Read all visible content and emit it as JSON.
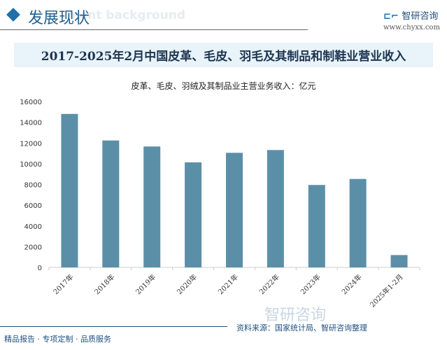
{
  "header": {
    "section_title": "发展现状",
    "ghost_text": "ment background",
    "brand": "智研咨询",
    "url": "www.chyxx.com"
  },
  "main_title": "2017-2025年2月中国皮革、毛皮、羽毛及其制品和制鞋业营业收入",
  "footer": {
    "slogan": "精品报告 · 专项定制 · 品质服务",
    "source": "资料来源：国家统计局、智研咨询整理",
    "logo_text": "智研咨询"
  },
  "colors": {
    "bar": "#5b8fa8",
    "accent": "#1f6fa8"
  },
  "chart_data": {
    "type": "bar",
    "title": "皮革、毛皮、羽绒及其制品业主营业务收入：亿元",
    "categories": [
      "2017年",
      "2018年",
      "2019年",
      "2020年",
      "2021年",
      "2022年",
      "2023年",
      "2024年",
      "2025年1-2月"
    ],
    "values": [
      14800,
      12240,
      11660,
      10130,
      11050,
      11320,
      7950,
      8530,
      1190
    ],
    "ylim": [
      0,
      16000
    ],
    "yticks": [
      "0",
      "2000",
      "4000",
      "6000",
      "8000",
      "10000",
      "12000",
      "14000",
      "16000"
    ],
    "grid": false,
    "legend": "none"
  }
}
